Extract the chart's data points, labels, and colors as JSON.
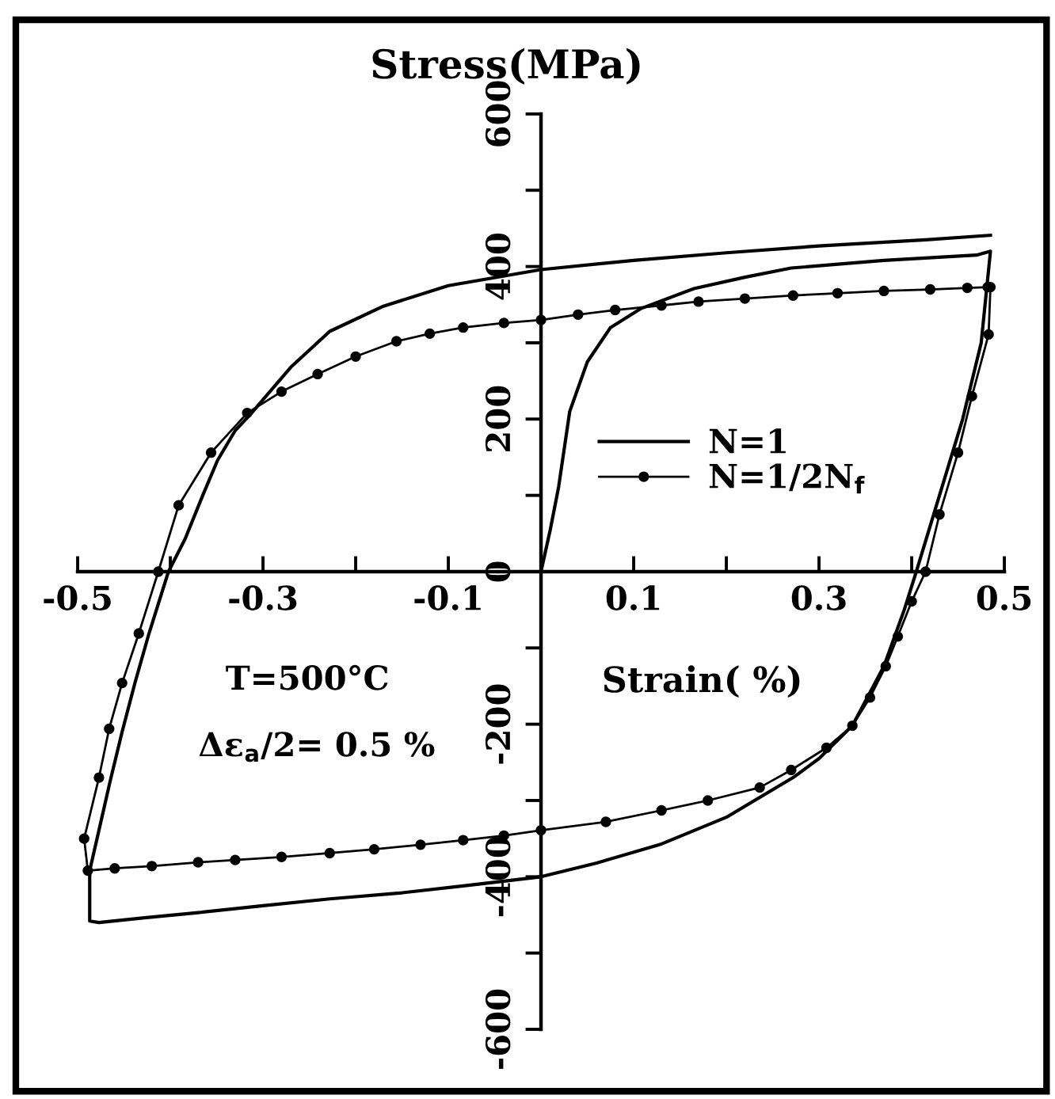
{
  "chart_data": {
    "type": "line",
    "xlabel": "Strain( %)",
    "ylabel": "Stress(MPa)",
    "annotations": [
      "T=500°C",
      "Δε$_{a}$/2= 0.5 %"
    ],
    "series": [
      {
        "name": "N=1",
        "color": "#000000",
        "x": [
          0,
          0.01,
          0.019,
          0.031,
          0.05,
          0.075,
          0.108,
          0.165,
          0.22,
          0.27,
          0.37,
          0.47,
          0.485,
          0.475,
          0.455,
          0.43,
          0.405,
          0.392,
          0.37,
          0.336,
          0.3,
          0.272,
          0.2,
          0.13,
          0.06,
          0,
          -0.084,
          -0.15,
          -0.228,
          -0.3,
          -0.37,
          -0.43,
          -0.477,
          -0.487,
          -0.487,
          -0.477,
          -0.465,
          -0.452,
          -0.438,
          -0.423,
          -0.402,
          -0.384,
          -0.365,
          -0.349,
          -0.33,
          -0.313,
          -0.27,
          -0.228,
          -0.17,
          -0.1,
          0,
          0.1,
          0.2,
          0.3,
          0.415,
          0.485
        ],
        "values": [
          0,
          55,
          111,
          210,
          275,
          320,
          345,
          371,
          386,
          398,
          408,
          415,
          420,
          300,
          200,
          100,
          0,
          -50,
          -124,
          -202,
          -245,
          -270,
          -322,
          -357,
          -382,
          -400,
          -412,
          -421,
          -429,
          -438,
          -447,
          -454,
          -460,
          -458,
          -392,
          -339,
          -275,
          -210,
          -145,
          -81,
          0,
          43,
          100,
          146,
          185,
          207,
          268,
          315,
          348,
          375,
          396,
          408,
          418,
          427,
          435,
          441
        ]
      },
      {
        "name": "N=1/2N$_{f}$",
        "color": "#000000",
        "marker": "circle",
        "x": [
          0.485,
          0.483,
          0.465,
          0.45,
          0.43,
          0.415,
          0.4,
          0.385,
          0.372,
          0.355,
          0.336,
          0.308,
          0.27,
          0.236,
          0.18,
          0.13,
          0.07,
          0,
          -0.04,
          -0.084,
          -0.13,
          -0.18,
          -0.228,
          -0.28,
          -0.33,
          -0.37,
          -0.42,
          -0.46,
          -0.489,
          -0.493,
          -0.477,
          -0.466,
          -0.452,
          -0.434,
          -0.413,
          -0.391,
          -0.356,
          -0.317,
          -0.28,
          -0.241,
          -0.2,
          -0.156,
          -0.12,
          -0.084,
          -0.04,
          0,
          0.04,
          0.08,
          0.13,
          0.17,
          0.22,
          0.272,
          0.32,
          0.37,
          0.42,
          0.46,
          0.482
        ],
        "values": [
          373,
          311,
          230,
          156,
          75,
          0,
          -39,
          -85,
          -124,
          -165,
          -202,
          -231,
          -260,
          -283,
          -300,
          -313,
          -328,
          -339,
          -346,
          -352,
          -358,
          -364,
          -369,
          -374,
          -378,
          -381,
          -386,
          -389,
          -392,
          -350,
          -270,
          -206,
          -146,
          -81,
          0,
          87,
          156,
          208,
          236,
          259,
          282,
          302,
          312,
          320,
          326,
          330,
          337,
          343,
          349,
          354,
          358,
          362,
          365,
          368,
          370,
          372,
          373
        ]
      }
    ],
    "xlim": [
      -0.5,
      0.5
    ],
    "ylim": [
      -600,
      600
    ],
    "xticks": [
      -0.5,
      {
        "value": -0.4,
        "label": null
      },
      -0.3,
      {
        "value": -0.2,
        "label": null
      },
      -0.1,
      0.1,
      {
        "value": 0.2,
        "label": null
      },
      0.3,
      {
        "value": 0.4,
        "label": null
      },
      0.5
    ],
    "yticks": [
      -600,
      {
        "value": -500,
        "label": null
      },
      -400,
      {
        "value": -300,
        "label": null
      },
      -200,
      {
        "value": -100,
        "label": null
      },
      0,
      {
        "value": 100,
        "label": null
      },
      200,
      {
        "value": 300,
        "label": null
      },
      400,
      {
        "value": 500,
        "label": null
      },
      600
    ],
    "grid": false,
    "legend": "center right"
  }
}
